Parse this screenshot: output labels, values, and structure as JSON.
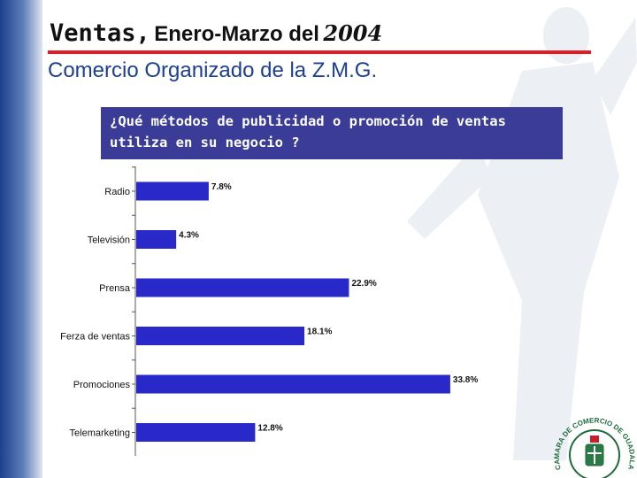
{
  "slide": {
    "title_part1": "Ventas,",
    "title_part2": "Enero-Marzo del",
    "title_part3": "2004",
    "subtitle": "Comercio Organizado de la Z.M.G.",
    "question": "¿Qué métodos de publicidad o promoción de ventas utiliza en su negocio ?",
    "seal_text": "CAMARA DE COMERCIO DE GUADALAJARA"
  },
  "colors": {
    "bar": "#2929c9",
    "question_box": "#3b3b98",
    "title_rule": "#e31b23",
    "subtitle": "#1c3f94"
  },
  "chart_data": {
    "type": "bar",
    "orientation": "horizontal",
    "title": "",
    "xlabel": "",
    "ylabel": "",
    "grid": false,
    "legend": "none",
    "categories": [
      "Radio",
      "Televisión",
      "Prensa",
      "Ferza de ventas",
      "Promociones",
      "Telemarketing"
    ],
    "values": [
      7.8,
      4.3,
      22.9,
      18.1,
      33.8,
      12.8
    ],
    "value_labels": [
      "7.8%",
      "4.3%",
      "22.9%",
      "18.1%",
      "33.8%",
      "12.8%"
    ],
    "xlim": [
      0,
      40
    ]
  }
}
